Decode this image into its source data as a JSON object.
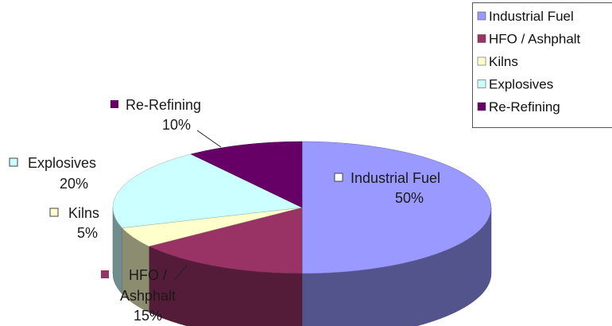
{
  "chart_data": {
    "type": "pie",
    "style": "3d",
    "categories": [
      "Industrial Fuel",
      "HFO / Ashphalt",
      "Kilns",
      "Explosives",
      "Re-Refining"
    ],
    "values": [
      50,
      15,
      5,
      20,
      10
    ],
    "colors": [
      "#9999ff",
      "#993366",
      "#ffffcc",
      "#ccffff",
      "#660066"
    ],
    "data_labels": {
      "industrial_fuel": {
        "name": "Industrial Fuel",
        "pct": "50%"
      },
      "hfo": {
        "name_line1": "HFO /",
        "name_line2": "Ashphalt",
        "pct": "15%"
      },
      "kilns": {
        "name": "Kilns",
        "pct": "5%"
      },
      "explosives": {
        "name": "Explosives",
        "pct": "20%"
      },
      "rerefining": {
        "name": "Re-Refining",
        "pct": "10%"
      }
    },
    "legend": {
      "position": "top-right",
      "entries": [
        "Industrial Fuel",
        "HFO / Ashphalt",
        "Kilns",
        "Explosives",
        "Re-Refining"
      ]
    }
  }
}
